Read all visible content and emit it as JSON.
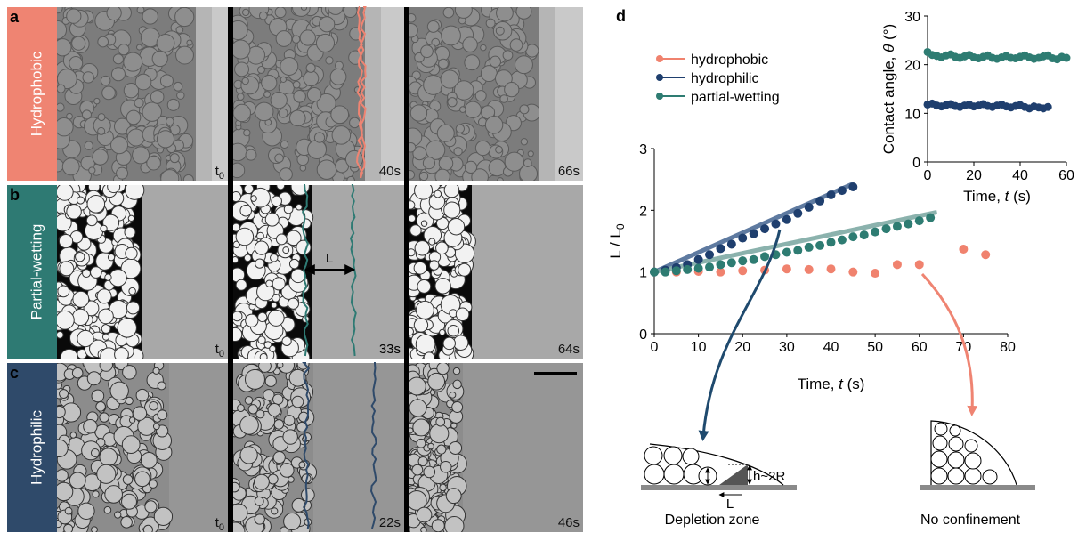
{
  "panel_labels": [
    "a",
    "b",
    "c",
    "d"
  ],
  "rows": [
    {
      "label": "Hydrophobic",
      "color": "#ef8472",
      "times": [
        {
          "base": "t",
          "sub": "0"
        },
        "40s",
        "66s"
      ]
    },
    {
      "label": "Partial-wetting",
      "color": "#2e7a73",
      "times": [
        {
          "base": "t",
          "sub": "0"
        },
        "33s",
        "64s"
      ]
    },
    {
      "label": "Hydrophilic",
      "color": "#2f4a6a",
      "times": [
        {
          "base": "t",
          "sub": "0"
        },
        "22s",
        "46s"
      ]
    }
  ],
  "micrograph_annotation": "L",
  "chart_data": [
    {
      "type": "scatter",
      "xlabel": [
        "Time, ",
        "t",
        " (s)"
      ],
      "ylabel": [
        "L / L",
        "0"
      ],
      "xlim": [
        0,
        80
      ],
      "ylim": [
        0,
        3
      ],
      "xticks": [
        0,
        10,
        20,
        30,
        40,
        50,
        60,
        70,
        80
      ],
      "yticks": [
        0,
        1,
        2,
        3
      ],
      "series": [
        {
          "name": "hydrophobic",
          "color": "#f0826e",
          "x": [
            5,
            10,
            15,
            20,
            25,
            30,
            35,
            40,
            45,
            50,
            55,
            60,
            70,
            75
          ],
          "values": [
            1.0,
            1.01,
            1.0,
            1.02,
            1.03,
            1.05,
            1.04,
            1.05,
            1.0,
            0.98,
            1.12,
            1.12,
            1.37,
            1.28
          ]
        },
        {
          "name": "hydrophilic",
          "color": "#1f3f6e",
          "x": [
            0,
            2.5,
            5,
            7.5,
            10,
            12.5,
            15,
            17.5,
            20,
            22.5,
            25,
            27.5,
            30,
            32.5,
            35,
            37.5,
            40,
            42.5,
            45
          ],
          "values": [
            1.0,
            1.03,
            1.07,
            1.12,
            1.2,
            1.28,
            1.38,
            1.45,
            1.55,
            1.62,
            1.7,
            1.78,
            1.85,
            1.95,
            2.05,
            2.15,
            2.25,
            2.32,
            2.38
          ],
          "fit_color": "#4d6b96",
          "fit_x": [
            0,
            45
          ],
          "fit_values": [
            1.0,
            2.43
          ]
        },
        {
          "name": "partial-wetting",
          "color": "#2e7c72",
          "x": [
            0,
            2.5,
            5,
            7.5,
            10,
            12.5,
            15,
            17.5,
            20,
            22.5,
            25,
            27.5,
            30,
            32.5,
            35,
            37.5,
            40,
            42.5,
            45,
            47.5,
            50,
            52.5,
            55,
            57.5,
            60,
            62.5
          ],
          "values": [
            1.0,
            1.0,
            1.02,
            1.04,
            1.06,
            1.08,
            1.12,
            1.15,
            1.18,
            1.2,
            1.25,
            1.28,
            1.32,
            1.35,
            1.4,
            1.43,
            1.48,
            1.52,
            1.57,
            1.6,
            1.65,
            1.7,
            1.74,
            1.78,
            1.83,
            1.88
          ],
          "fit_color": "#7eaaa4",
          "fit_x": [
            0,
            64
          ],
          "fit_values": [
            1.0,
            1.97
          ]
        }
      ]
    },
    {
      "type": "scatter",
      "xlabel": [
        "Time, ",
        "t",
        " (s)"
      ],
      "ylabel": [
        "Contact angle, ",
        "θ",
        " (°)"
      ],
      "xlim": [
        0,
        60
      ],
      "ylim": [
        0,
        30
      ],
      "xticks": [
        0,
        20,
        40,
        60
      ],
      "yticks": [
        0,
        10,
        20,
        30
      ],
      "series": [
        {
          "name": "hydrophilic",
          "color": "#1f3f6e",
          "x": [
            0,
            2,
            4,
            6,
            8,
            10,
            12,
            14,
            16,
            18,
            20,
            22,
            24,
            26,
            28,
            30,
            32,
            34,
            36,
            38,
            40,
            42,
            44,
            46,
            48,
            50,
            52
          ],
          "values": [
            11.8,
            12.0,
            11.6,
            11.4,
            11.7,
            11.9,
            11.5,
            11.3,
            11.6,
            11.8,
            11.4,
            11.6,
            11.9,
            11.5,
            11.3,
            11.6,
            11.8,
            11.4,
            11.2,
            11.5,
            11.7,
            11.3,
            11.0,
            11.4,
            11.2,
            11.0,
            11.3
          ]
        },
        {
          "name": "partial-wetting",
          "color": "#2e7c72",
          "x": [
            0,
            2,
            4,
            6,
            8,
            10,
            12,
            14,
            16,
            18,
            20,
            22,
            24,
            26,
            28,
            30,
            32,
            34,
            36,
            38,
            40,
            42,
            44,
            46,
            48,
            50,
            52,
            54,
            56,
            58,
            60
          ],
          "values": [
            22.6,
            22.0,
            21.8,
            21.5,
            21.9,
            22.1,
            21.6,
            21.4,
            21.7,
            22.0,
            21.5,
            21.3,
            21.6,
            21.9,
            21.4,
            21.2,
            21.5,
            21.8,
            21.4,
            21.3,
            21.6,
            21.9,
            21.5,
            21.2,
            21.4,
            21.7,
            21.9,
            21.3,
            21.1,
            21.6,
            21.4
          ]
        }
      ]
    }
  ],
  "diagrams": [
    {
      "caption": "Depletion zone",
      "height_label": "h~2R",
      "length_label": "L"
    },
    {
      "caption": "No confinement"
    }
  ]
}
